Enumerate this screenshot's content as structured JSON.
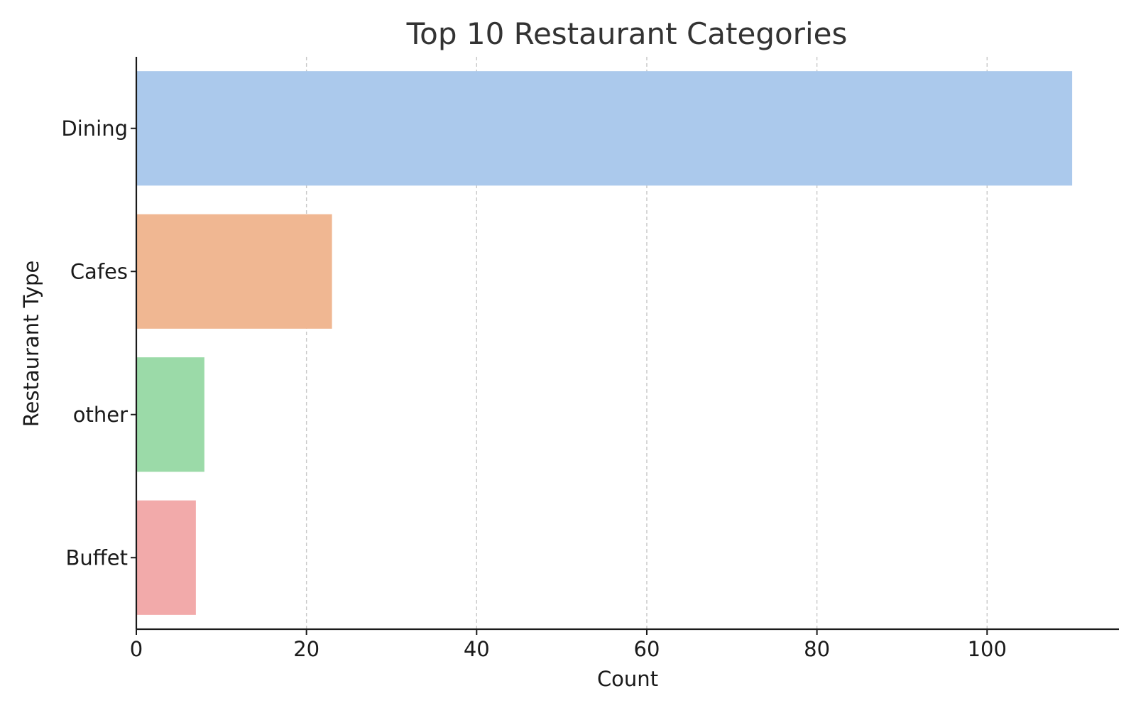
{
  "chart_data": {
    "type": "bar",
    "orientation": "horizontal",
    "title": "Top 10 Restaurant Categories",
    "xlabel": "Count",
    "ylabel": "Restaurant Type",
    "categories": [
      "Dining",
      "Cafes",
      "other",
      "Buffet"
    ],
    "values": [
      110,
      23,
      8,
      7
    ],
    "colors": [
      "#abc9ec",
      "#f0b792",
      "#9bdaa8",
      "#f2aaaa"
    ],
    "xlim": [
      0,
      115.5
    ],
    "xticks": [
      0,
      20,
      40,
      60,
      80,
      100
    ],
    "xtick_labels": [
      "0",
      "20",
      "40",
      "60",
      "80",
      "100"
    ],
    "grid": "x-dashed",
    "legend": "none"
  }
}
